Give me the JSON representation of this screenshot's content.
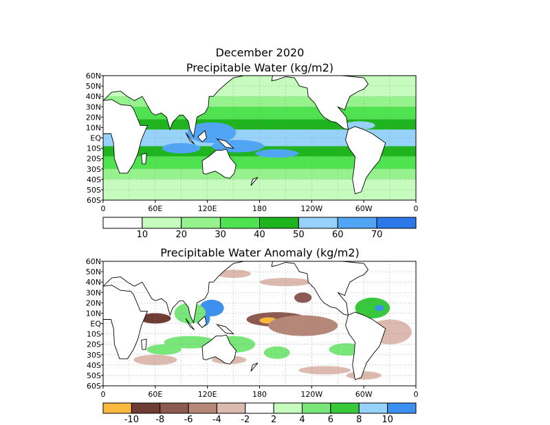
{
  "chart_data": [
    {
      "type": "heatmap",
      "title_line1": "December 2020",
      "title_line2": "Precipitable Water (kg/m2)",
      "lat_labels": [
        "60N",
        "50N",
        "40N",
        "30N",
        "20N",
        "10N",
        "EQ",
        "10S",
        "20S",
        "30S",
        "40S",
        "50S",
        "60S"
      ],
      "lon_labels": [
        "0",
        "60E",
        "120E",
        "180",
        "120W",
        "60W",
        "0"
      ],
      "colorbar": {
        "colors": [
          "#ffffff",
          "#c6fcbe",
          "#96f28c",
          "#50e350",
          "#1eb41e",
          "#96d2fa",
          "#50a5f5",
          "#2c78e8"
        ],
        "labels": [
          "10",
          "20",
          "30",
          "40",
          "50",
          "60",
          "70"
        ]
      },
      "bands": [
        {
          "lat": [
            40,
            60
          ],
          "level": 1
        },
        {
          "lat": [
            30,
            40
          ],
          "level": 2
        },
        {
          "lat": [
            18,
            30
          ],
          "level": 3
        },
        {
          "lat": [
            8,
            18
          ],
          "level": 4
        },
        {
          "lat": [
            -8,
            8
          ],
          "level": 5
        },
        {
          "lat": [
            -18,
            -8
          ],
          "level": 4
        },
        {
          "lat": [
            -30,
            -18
          ],
          "level": 3
        },
        {
          "lat": [
            -40,
            -30
          ],
          "level": 2
        },
        {
          "lat": [
            -60,
            -40
          ],
          "level": 1
        }
      ],
      "blobs": [
        {
          "lon": 125,
          "lat": 5,
          "rx": 28,
          "ry": 10,
          "level": 6
        },
        {
          "lon": 155,
          "lat": -8,
          "rx": 30,
          "ry": 6,
          "level": 6
        },
        {
          "lon": 90,
          "lat": -10,
          "rx": 22,
          "ry": 5,
          "level": 6
        },
        {
          "lon": 200,
          "lat": -15,
          "rx": 25,
          "ry": 4,
          "level": 6
        },
        {
          "lon": 295,
          "lat": 12,
          "rx": 18,
          "ry": 4,
          "level": 5
        },
        {
          "lon": 305,
          "lat": -10,
          "rx": 15,
          "ry": 8,
          "level": 4
        }
      ]
    },
    {
      "type": "heatmap",
      "title": "Precipitable Water Anomaly (kg/m2)",
      "lat_labels": [
        "60N",
        "50N",
        "40N",
        "30N",
        "20N",
        "10N",
        "EQ",
        "10S",
        "20S",
        "30S",
        "40S",
        "50S",
        "60S"
      ],
      "lon_labels": [
        "0",
        "60E",
        "120E",
        "180",
        "120W",
        "60W",
        "0"
      ],
      "colorbar": {
        "colors": [
          "#fbb93e",
          "#6e3c32",
          "#8c5a50",
          "#b48778",
          "#dcbaaf",
          "#ffffff",
          "#c6fcbe",
          "#78e678",
          "#37c83c",
          "#96d2fa",
          "#3c91f0"
        ],
        "labels": [
          "-10",
          "-8",
          "-6",
          "-4",
          "-2",
          "2",
          "4",
          "6",
          "8",
          "10"
        ]
      },
      "blobs": [
        {
          "lon": 125,
          "lat": 15,
          "rx": 14,
          "ry": 8,
          "level": 10
        },
        {
          "lon": 115,
          "lat": 5,
          "rx": 8,
          "ry": 8,
          "level": 10
        },
        {
          "lon": 100,
          "lat": 10,
          "rx": 18,
          "ry": 10,
          "level": 7
        },
        {
          "lon": 60,
          "lat": 5,
          "rx": 18,
          "ry": 5,
          "level": 1
        },
        {
          "lon": 200,
          "lat": 4,
          "rx": 35,
          "ry": 7,
          "level": 2
        },
        {
          "lon": 190,
          "lat": 3,
          "rx": 10,
          "ry": 3,
          "level": 0
        },
        {
          "lon": 230,
          "lat": -2,
          "rx": 40,
          "ry": 10,
          "level": 3
        },
        {
          "lon": 230,
          "lat": 25,
          "rx": 10,
          "ry": 5,
          "level": 2
        },
        {
          "lon": 310,
          "lat": 15,
          "rx": 20,
          "ry": 10,
          "level": 8
        },
        {
          "lon": 318,
          "lat": 15,
          "rx": 5,
          "ry": 3,
          "level": 10
        },
        {
          "lon": 330,
          "lat": -8,
          "rx": 25,
          "ry": 12,
          "level": 4
        },
        {
          "lon": 70,
          "lat": -25,
          "rx": 20,
          "ry": 5,
          "level": 7
        },
        {
          "lon": 100,
          "lat": -18,
          "rx": 30,
          "ry": 6,
          "level": 7
        },
        {
          "lon": 150,
          "lat": -20,
          "rx": 25,
          "ry": 8,
          "level": 7
        },
        {
          "lon": 60,
          "lat": -35,
          "rx": 25,
          "ry": 5,
          "level": 4
        },
        {
          "lon": 145,
          "lat": -35,
          "rx": 20,
          "ry": 4,
          "level": 4
        },
        {
          "lon": 255,
          "lat": -45,
          "rx": 30,
          "ry": 4,
          "level": 4
        },
        {
          "lon": 300,
          "lat": -50,
          "rx": 20,
          "ry": 4,
          "level": 4
        },
        {
          "lon": 210,
          "lat": 40,
          "rx": 30,
          "ry": 4,
          "level": 4
        },
        {
          "lon": 150,
          "lat": 48,
          "rx": 20,
          "ry": 4,
          "level": 4
        },
        {
          "lon": 280,
          "lat": -25,
          "rx": 20,
          "ry": 6,
          "level": 7
        },
        {
          "lon": 200,
          "lat": -28,
          "rx": 15,
          "ry": 6,
          "level": 7
        }
      ]
    }
  ]
}
